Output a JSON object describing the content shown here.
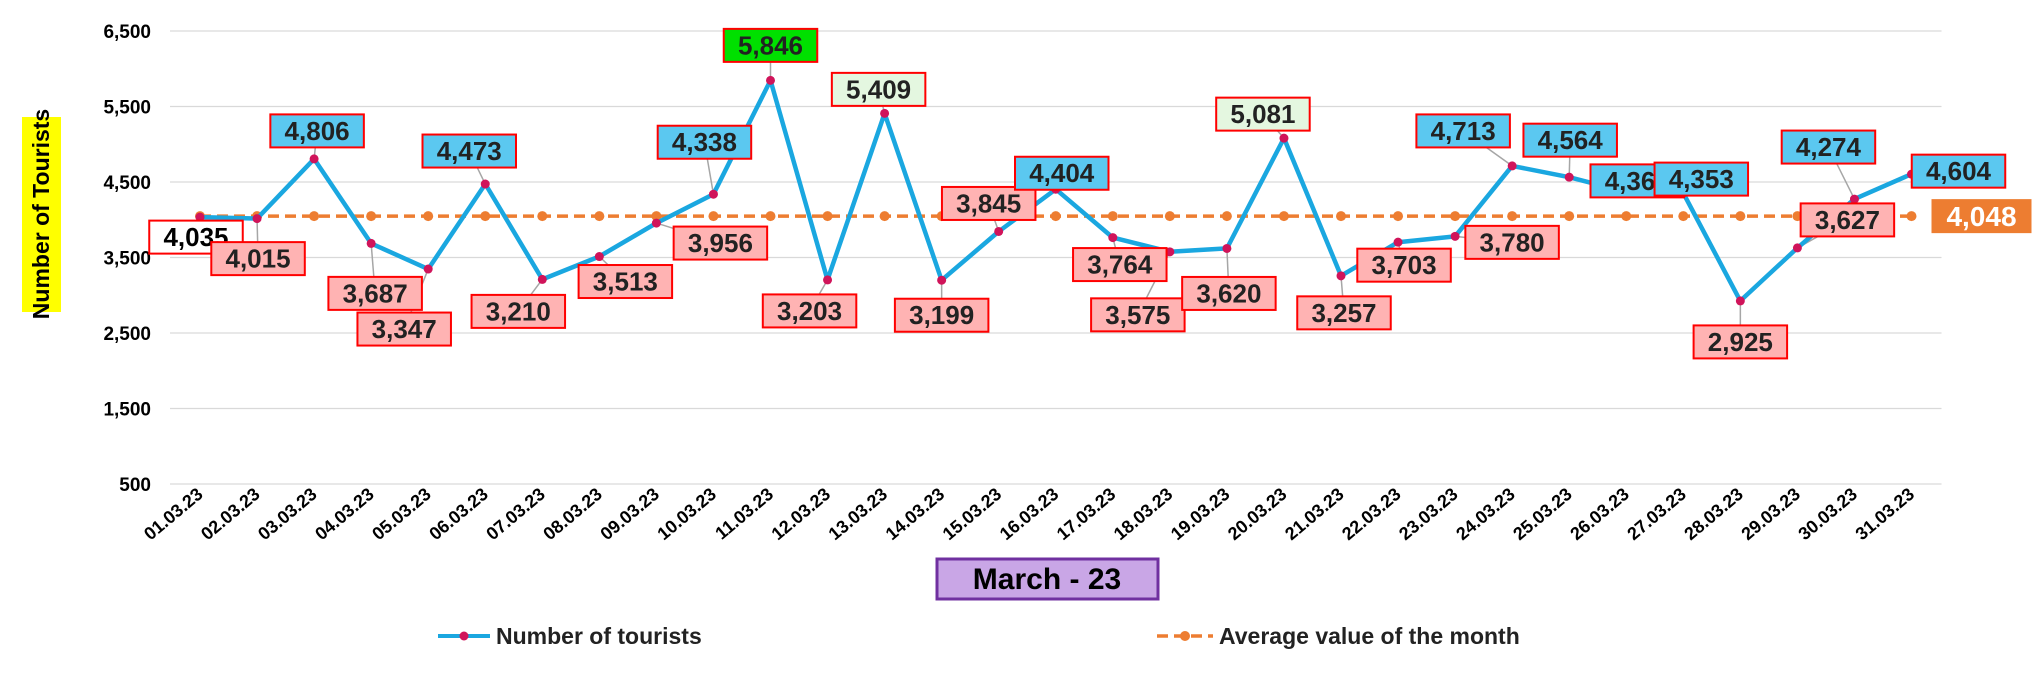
{
  "chart_data": {
    "type": "line",
    "ylabel": "Number of Tourists",
    "xlabel": "March - 23",
    "ylim": [
      500,
      6500
    ],
    "yticks": [
      "500",
      "1,500",
      "2,500",
      "3,500",
      "4,500",
      "5,500",
      "6,500"
    ],
    "grid": true,
    "legend_position": "bottom",
    "categories": [
      "01.03.23",
      "02.03.23",
      "03.03.23",
      "04.03.23",
      "05.03.23",
      "06.03.23",
      "07.03.23",
      "08.03.23",
      "09.03.23",
      "10.03.23",
      "11.03.23",
      "12.03.23",
      "13.03.23",
      "14.03.23",
      "15.03.23",
      "16.03.23",
      "17.03.23",
      "18.03.23",
      "19.03.23",
      "20.03.23",
      "21.03.23",
      "22.03.23",
      "23.03.23",
      "24.03.23",
      "25.03.23",
      "26.03.23",
      "27.03.23",
      "28.03.23",
      "29.03.23",
      "30.03.23",
      "31.03.23"
    ],
    "series": [
      {
        "name": "Number of tourists",
        "color": "#1aa7e0",
        "values": [
          4035,
          4015,
          4806,
          3687,
          3347,
          4473,
          3210,
          3513,
          3956,
          4338,
          5846,
          3203,
          5409,
          3199,
          3845,
          4404,
          3764,
          3575,
          3620,
          5081,
          3257,
          3703,
          3780,
          4713,
          4564,
          4369,
          4353,
          2925,
          3627,
          4274,
          4604
        ],
        "labels": [
          "4,035",
          "4,015",
          "4,806",
          "3,687",
          "3,347",
          "4,473",
          "3,210",
          "3,513",
          "3,956",
          "4,338",
          "5,846",
          "3,203",
          "5,409",
          "3,199",
          "3,845",
          "4,404",
          "3,764",
          "3,575",
          "3,620",
          "5,081",
          "3,257",
          "3,703",
          "3,780",
          "4,713",
          "4,564",
          "4,369",
          "4,353",
          "2,925",
          "3,627",
          "4,274",
          "4,604"
        ]
      },
      {
        "name": "Average value of the month",
        "color": "#ed7d31",
        "style": "dashed",
        "value": 4048,
        "label": "4,048"
      }
    ],
    "label_colors": {
      "above_average": "#5bc8f0",
      "below_average": "#ffb3b3",
      "maximum": "#00e000",
      "high": "#e4f7e0",
      "first": "#ffffff",
      "average": "#ed7d31",
      "label_border": "#ff0000"
    }
  }
}
